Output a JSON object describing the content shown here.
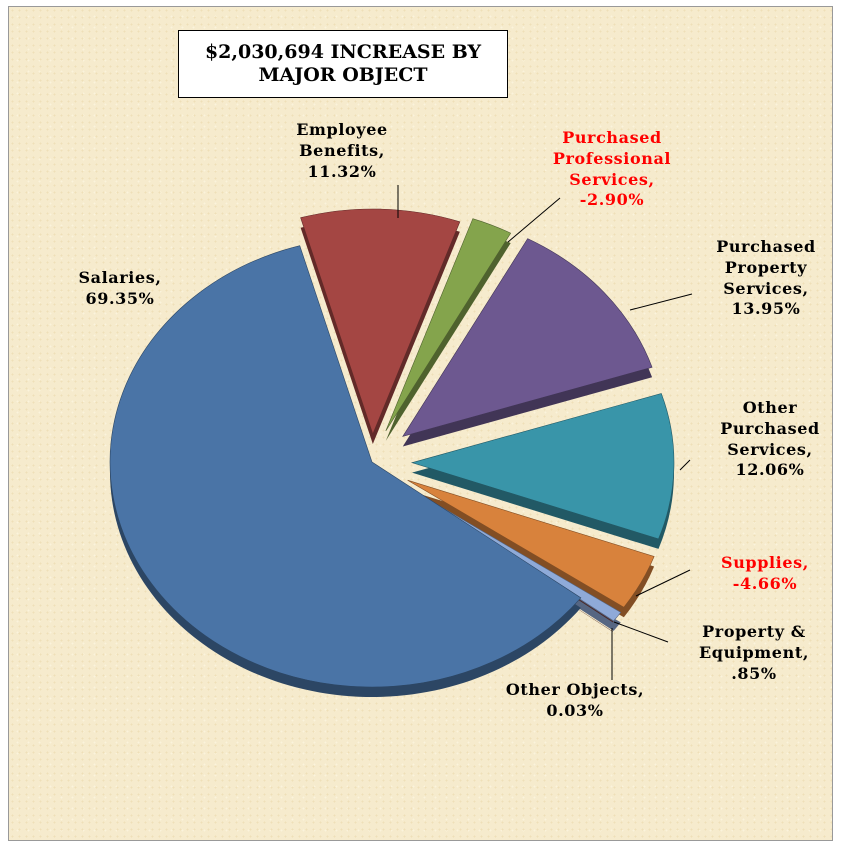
{
  "chart_data": {
    "type": "pie",
    "title": "$2,030,694  INCREASE BY MAJOR OBJECT",
    "categories": [
      "Employee Benefits,",
      "Purchased Professional Services,",
      "Purchased Property Services,",
      "Other Purchased Services,",
      "Supplies,",
      "Property & Equipment,",
      "Other Objects,",
      "Salaries,"
    ],
    "values": [
      11.32,
      -2.9,
      13.95,
      12.06,
      -4.66,
      0.85,
      0.03,
      69.35
    ],
    "value_labels": [
      "11.32%",
      "-2.90%",
      "13.95%",
      "12.06%",
      "-4.66%",
      ".85%",
      "0.03%",
      "69.35%"
    ],
    "colors": [
      "#a44643",
      "#84a44c",
      "#6d5890",
      "#3995a9",
      "#d8823c",
      "#8faad8",
      "#7b3f3c",
      "#4a74a6"
    ],
    "negative_label_color": "#ff0000"
  }
}
